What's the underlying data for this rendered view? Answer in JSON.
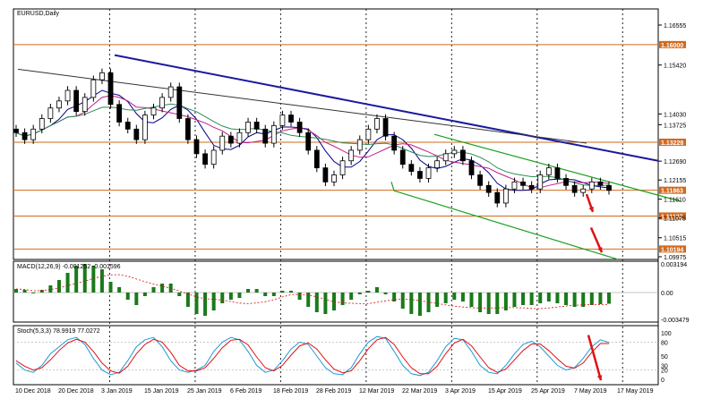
{
  "chart_data": {
    "type": "candlestick",
    "symbol_label": "EURUSD,Daily",
    "price_levels": [
      "1.16555",
      "1.15420",
      "1.14030",
      "1.13725",
      "1.12690",
      "1.12155",
      "1.11610",
      "1.11075",
      "1.10515",
      "1.09975"
    ],
    "highlighted_levels": [
      {
        "label": "1.16000",
        "value": 1.16
      },
      {
        "label": "1.13228",
        "value": 1.13228
      },
      {
        "label": "1.11863",
        "value": 1.11863
      },
      {
        "label": "1.11132",
        "value": 1.11132
      },
      {
        "label": "1.10194",
        "value": 1.10194
      }
    ],
    "dates": [
      "10 Dec 2018",
      "20 Dec 2018",
      "3 Jan 2019",
      "15 Jan 2019",
      "25 Jan 2019",
      "6 Feb 2019",
      "18 Feb 2019",
      "28 Feb 2019",
      "12 Mar 2019",
      "22 Mar 2019",
      "3 Apr 2019",
      "15 Apr 2019",
      "25 Apr 2019",
      "7 May 2019",
      "17 May 2019"
    ],
    "closes": [
      1.135,
      1.133,
      1.136,
      1.139,
      1.142,
      1.144,
      1.147,
      1.141,
      1.145,
      1.15,
      1.152,
      1.143,
      1.138,
      1.136,
      1.133,
      1.14,
      1.142,
      1.145,
      1.148,
      1.139,
      1.133,
      1.129,
      1.126,
      1.13,
      1.134,
      1.132,
      1.135,
      1.138,
      1.136,
      1.132,
      1.137,
      1.14,
      1.138,
      1.135,
      1.13,
      1.125,
      1.121,
      1.123,
      1.127,
      1.13,
      1.133,
      1.136,
      1.139,
      1.134,
      1.13,
      1.126,
      1.124,
      1.122,
      1.125,
      1.127,
      1.129,
      1.13,
      1.127,
      1.123,
      1.12,
      1.118,
      1.115,
      1.119,
      1.121,
      1.12,
      1.119,
      1.123,
      1.125,
      1.122,
      1.12,
      1.118,
      1.119,
      1.121,
      1.12,
      1.1186
    ],
    "macd_label": "MACD(12,26,9) -0.001252 -0.001596",
    "macd_scale": [
      "0.003194",
      "0.00",
      "-0.003479"
    ],
    "macd_hist": [
      0.0004,
      0.0003,
      -0.0001,
      0.0003,
      0.0008,
      0.0014,
      0.0022,
      0.003,
      0.0032,
      0.003,
      0.0026,
      0.0012,
      0.0006,
      -0.0008,
      -0.0014,
      -0.0004,
      0.0006,
      0.001,
      0.001,
      -0.0004,
      -0.0016,
      -0.0024,
      -0.0026,
      -0.002,
      -0.0012,
      -0.0008,
      -0.0006,
      0.0004,
      0.0004,
      -0.0004,
      -0.0004,
      0.0002,
      0.0002,
      -0.0008,
      -0.0016,
      -0.0022,
      -0.0024,
      -0.002,
      -0.0014,
      -0.0008,
      -0.0002,
      0.0002,
      0.0006,
      -0.0002,
      -0.001,
      -0.0018,
      -0.0024,
      -0.0026,
      -0.0022,
      -0.0016,
      -0.0012,
      -0.0008,
      -0.001,
      -0.0016,
      -0.0022,
      -0.0024,
      -0.0024,
      -0.002,
      -0.0016,
      -0.0014,
      -0.0014,
      -0.0012,
      -0.001,
      -0.0012,
      -0.0014,
      -0.0016,
      -0.0016,
      -0.0014,
      -0.0013,
      -0.00125
    ],
    "stoch_label": "Stoch(5,3,3) 78.9919 77.0272",
    "stoch_scale": [
      "100",
      "80",
      "50",
      "30",
      "20",
      "0"
    ],
    "stoch_k": [
      35,
      20,
      15,
      30,
      55,
      70,
      85,
      90,
      75,
      45,
      20,
      10,
      15,
      40,
      70,
      85,
      90,
      70,
      40,
      20,
      15,
      20,
      30,
      60,
      80,
      90,
      85,
      60,
      30,
      15,
      20,
      40,
      65,
      80,
      75,
      50,
      25,
      12,
      10,
      25,
      55,
      80,
      92,
      88,
      60,
      30,
      12,
      8,
      15,
      40,
      70,
      88,
      85,
      60,
      30,
      15,
      12,
      30,
      55,
      75,
      82,
      70,
      50,
      30,
      20,
      25,
      45,
      70,
      85,
      79
    ],
    "stoch_d": [
      40,
      28,
      20,
      25,
      42,
      62,
      78,
      86,
      80,
      60,
      35,
      18,
      13,
      28,
      55,
      75,
      86,
      80,
      58,
      30,
      18,
      18,
      25,
      45,
      68,
      84,
      86,
      74,
      48,
      25,
      18,
      30,
      52,
      72,
      78,
      65,
      42,
      22,
      14,
      18,
      40,
      66,
      85,
      90,
      75,
      48,
      25,
      12,
      12,
      28,
      55,
      78,
      86,
      72,
      48,
      25,
      15,
      22,
      42,
      62,
      76,
      76,
      62,
      44,
      28,
      24,
      35,
      58,
      77,
      77
    ],
    "arrows": [
      {
        "panel": "price",
        "direction": "down",
        "color": "#e01010"
      },
      {
        "panel": "price",
        "direction": "down",
        "color": "#e01010"
      },
      {
        "panel": "stoch",
        "direction": "down",
        "color": "#e01010"
      }
    ]
  }
}
